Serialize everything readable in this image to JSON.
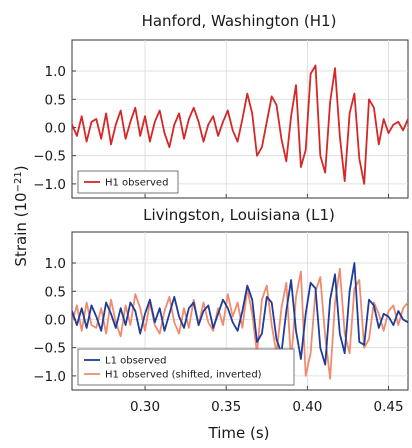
{
  "chart_data": {
    "type": "line",
    "ylabel": "Strain (10",
    "ylabel_exponent": "−21",
    "ylabel_close": ")",
    "xlabel": "Time (s)",
    "xlim": [
      0.255,
      0.462
    ],
    "xticks": [
      {
        "value": 0.3,
        "label": "0.30"
      },
      {
        "value": 0.35,
        "label": "0.35"
      },
      {
        "value": 0.4,
        "label": "0.40"
      },
      {
        "value": 0.45,
        "label": "0.45"
      }
    ],
    "grid": true,
    "panels": [
      {
        "title": "Hanford, Washington (H1)",
        "ylim": [
          -1.25,
          1.55
        ],
        "yticks": [
          {
            "value": 1.0,
            "label": "1.0"
          },
          {
            "value": 0.5,
            "label": "0.5"
          },
          {
            "value": 0.0,
            "label": "0.0"
          },
          {
            "value": -0.5,
            "label": "−0.5"
          },
          {
            "value": -1.0,
            "label": "−1.0"
          }
        ],
        "legend_position": "bottom-left",
        "series": [
          {
            "name": "H1 observed",
            "color": "#d62728",
            "x": [
              0.255,
              0.258,
              0.261,
              0.264,
              0.267,
              0.27,
              0.273,
              0.276,
              0.279,
              0.282,
              0.285,
              0.288,
              0.291,
              0.294,
              0.297,
              0.3,
              0.303,
              0.306,
              0.309,
              0.312,
              0.315,
              0.318,
              0.321,
              0.324,
              0.327,
              0.33,
              0.333,
              0.336,
              0.339,
              0.342,
              0.345,
              0.348,
              0.351,
              0.354,
              0.357,
              0.36,
              0.363,
              0.366,
              0.369,
              0.372,
              0.375,
              0.378,
              0.381,
              0.384,
              0.387,
              0.39,
              0.393,
              0.396,
              0.399,
              0.402,
              0.405,
              0.408,
              0.411,
              0.414,
              0.417,
              0.42,
              0.423,
              0.426,
              0.429,
              0.432,
              0.435,
              0.438,
              0.441,
              0.444,
              0.447,
              0.45,
              0.453,
              0.456,
              0.459,
              0.462
            ],
            "y": [
              0.05,
              -0.15,
              0.2,
              -0.25,
              0.1,
              0.15,
              -0.2,
              0.25,
              -0.3,
              0.05,
              0.3,
              -0.2,
              0.1,
              0.35,
              -0.15,
              0.2,
              -0.25,
              0.1,
              0.3,
              -0.1,
              -0.35,
              0.05,
              0.25,
              -0.2,
              0.15,
              0.35,
              0.1,
              -0.25,
              0.05,
              0.2,
              -0.15,
              0.1,
              0.3,
              -0.05,
              -0.25,
              0.15,
              0.6,
              0.25,
              -0.5,
              -0.35,
              0.1,
              0.55,
              0.4,
              -0.2,
              -0.6,
              0.2,
              0.75,
              -0.7,
              -0.4,
              0.95,
              1.1,
              -0.5,
              -0.8,
              0.45,
              1.05,
              -0.15,
              -0.95,
              0.25,
              0.6,
              -0.55,
              -1.0,
              0.5,
              0.35,
              -0.3,
              0.15,
              -0.1,
              0.05,
              0.1,
              -0.05,
              0.15
            ]
          }
        ]
      },
      {
        "title": "Livingston, Louisiana (L1)",
        "ylim": [
          -1.25,
          1.55
        ],
        "yticks": [
          {
            "value": 1.0,
            "label": "1.0"
          },
          {
            "value": 0.5,
            "label": "0.5"
          },
          {
            "value": 0.0,
            "label": "0.0"
          },
          {
            "value": -0.5,
            "label": "−0.5"
          },
          {
            "value": -1.0,
            "label": "−1.0"
          }
        ],
        "legend_position": "bottom-left",
        "series": [
          {
            "name": "L1 observed",
            "color": "#1f3c99",
            "x": [
              0.255,
              0.258,
              0.261,
              0.264,
              0.267,
              0.27,
              0.273,
              0.276,
              0.279,
              0.282,
              0.285,
              0.288,
              0.291,
              0.294,
              0.297,
              0.3,
              0.303,
              0.306,
              0.309,
              0.312,
              0.315,
              0.318,
              0.321,
              0.324,
              0.327,
              0.33,
              0.333,
              0.336,
              0.339,
              0.342,
              0.345,
              0.348,
              0.351,
              0.354,
              0.357,
              0.36,
              0.363,
              0.366,
              0.369,
              0.372,
              0.375,
              0.378,
              0.381,
              0.384,
              0.387,
              0.39,
              0.393,
              0.396,
              0.399,
              0.402,
              0.405,
              0.408,
              0.411,
              0.414,
              0.417,
              0.42,
              0.423,
              0.426,
              0.429,
              0.432,
              0.435,
              0.438,
              0.441,
              0.444,
              0.447,
              0.45,
              0.453,
              0.456,
              0.459,
              0.462
            ],
            "y": [
              0.15,
              -0.1,
              0.2,
              -0.15,
              0.25,
              0.05,
              -0.2,
              0.3,
              0.1,
              -0.15,
              0.2,
              -0.1,
              0.3,
              0.15,
              -0.25,
              0.1,
              0.35,
              -0.05,
              0.2,
              -0.2,
              0.1,
              0.4,
              0.05,
              -0.15,
              0.2,
              0.3,
              -0.1,
              0.15,
              0.25,
              -0.15,
              0.1,
              0.35,
              0.2,
              -0.05,
              -0.2,
              0.15,
              0.6,
              0.35,
              -0.4,
              -0.25,
              0.4,
              0.3,
              -0.35,
              -0.6,
              0.15,
              0.7,
              -0.2,
              -0.7,
              0.1,
              0.65,
              0.55,
              -0.5,
              -0.8,
              0.35,
              0.8,
              -0.25,
              -0.6,
              0.5,
              1.0,
              -0.4,
              -0.45,
              0.35,
              0.25,
              -0.15,
              0.1,
              0.05,
              -0.1,
              0.15,
              0.0,
              -0.05
            ]
          },
          {
            "name": "H1 observed (shifted, inverted)",
            "color": "#f08c6e",
            "x": [
              0.255,
              0.258,
              0.261,
              0.264,
              0.267,
              0.27,
              0.273,
              0.276,
              0.279,
              0.282,
              0.285,
              0.288,
              0.291,
              0.294,
              0.297,
              0.3,
              0.303,
              0.306,
              0.309,
              0.312,
              0.315,
              0.318,
              0.321,
              0.324,
              0.327,
              0.33,
              0.333,
              0.336,
              0.339,
              0.342,
              0.345,
              0.348,
              0.351,
              0.354,
              0.357,
              0.36,
              0.363,
              0.366,
              0.369,
              0.372,
              0.375,
              0.378,
              0.381,
              0.384,
              0.387,
              0.39,
              0.393,
              0.396,
              0.399,
              0.402,
              0.405,
              0.408,
              0.411,
              0.414,
              0.417,
              0.42,
              0.423,
              0.426,
              0.429,
              0.432,
              0.435,
              0.438,
              0.441,
              0.444,
              0.447,
              0.45,
              0.453,
              0.456,
              0.459,
              0.462
            ],
            "y": [
              -0.05,
              0.25,
              -0.2,
              0.3,
              -0.1,
              -0.15,
              0.2,
              -0.25,
              0.35,
              -0.05,
              -0.3,
              0.25,
              -0.1,
              0.45,
              0.2,
              -0.2,
              0.3,
              -0.1,
              -0.25,
              0.15,
              0.4,
              -0.05,
              -0.25,
              0.2,
              -0.15,
              0.35,
              -0.1,
              0.3,
              -0.05,
              -0.2,
              0.2,
              -0.1,
              0.45,
              0.05,
              0.3,
              -0.15,
              0.55,
              0.1,
              -0.6,
              0.35,
              0.6,
              -0.1,
              -0.6,
              0.2,
              0.65,
              -0.75,
              0.4,
              0.85,
              -1.0,
              -0.6,
              0.5,
              0.75,
              -0.3,
              -1.05,
              0.3,
              0.9,
              -0.25,
              -0.6,
              0.55,
              0.7,
              -0.5,
              -0.35,
              0.3,
              0.1,
              -0.2,
              0.15,
              0.25,
              -0.1,
              0.2,
              0.3
            ]
          }
        ]
      }
    ]
  }
}
